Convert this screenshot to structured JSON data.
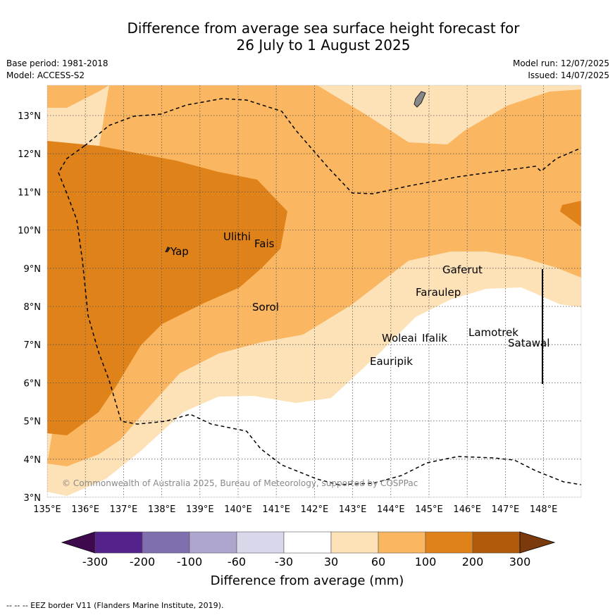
{
  "title": {
    "line1": "Difference from average sea surface height forecast for",
    "line2": "26 July to 1 August 2025"
  },
  "meta": {
    "base_period": "Base period: 1981-2018",
    "model": "Model: ACCESS-S2",
    "model_run": "Model run: 12/07/2025",
    "issued": "Issued: 14/07/2025"
  },
  "map": {
    "lon_range": [
      135,
      149
    ],
    "lat_range": [
      3,
      13.8
    ],
    "lon_ticks": [
      "135°E",
      "136°E",
      "137°E",
      "138°E",
      "139°E",
      "140°E",
      "141°E",
      "142°E",
      "143°E",
      "144°E",
      "145°E",
      "146°E",
      "147°E",
      "148°E"
    ],
    "lat_ticks": [
      "3°N",
      "4°N",
      "5°N",
      "6°N",
      "7°N",
      "8°N",
      "9°N",
      "10°N",
      "11°N",
      "12°N",
      "13°N"
    ],
    "places": [
      "Ulithi",
      "Fais",
      "Yap",
      "Gaferut",
      "Faraulep",
      "Sorol",
      "Woleai",
      "Ifalik",
      "Lamotrek",
      "Satawal",
      "Eauripik"
    ],
    "copyright": "© Commonwealth of Australia 2025, Bureau of Meteorology, supported by COSPPac"
  },
  "legend": {
    "title": "Difference from average (mm)",
    "ticks": [
      "-300",
      "-200",
      "-100",
      "-60",
      "-30",
      "30",
      "60",
      "100",
      "200",
      "300"
    ],
    "colors": [
      "#3f0a4d",
      "#52228a",
      "#7f6fae",
      "#aea6cf",
      "#d9d8eb",
      "#ffffff",
      "#fde1b7",
      "#fab660",
      "#e0821a",
      "#b05a0e",
      "#7a3a0c"
    ]
  },
  "footer": "--  --  -- EEZ border V11 (Flanders Marine Institute, 2019)."
}
